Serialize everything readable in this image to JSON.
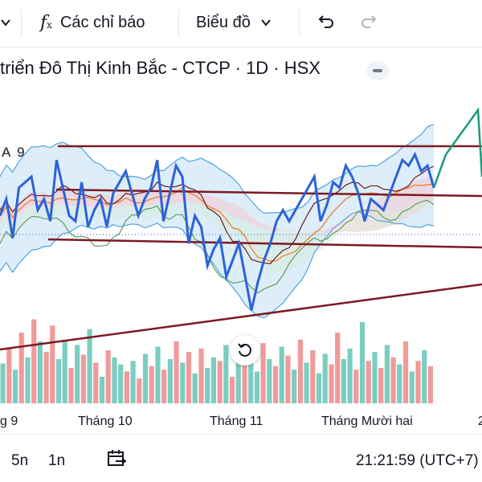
{
  "toolbar": {
    "indicators_label": "Các chỉ báo",
    "chart_type_label": "Biểu đồ",
    "icons": [
      "chevron-down-icon",
      "function-icon",
      "chevron-down-icon",
      "undo-icon",
      "redo-icon"
    ]
  },
  "symbol": {
    "title": "triển Đô Thị Kinh Bắc - CTCP · 1D · HSX"
  },
  "indicator": {
    "label": "A 9"
  },
  "chart_data": {
    "type": "line",
    "x_ticks": [
      "g 9",
      "Tháng 10",
      "Tháng 11",
      "Tháng Mười hai"
    ],
    "x_tick_partial_right": "2",
    "colors": {
      "price": "#2d62d8",
      "bands": "#4fa3e0",
      "band_fill": "#cfe6f7",
      "trendline": "#7b1a22",
      "cloud_pink": "#f4c9cf",
      "cloud_green": "#d6ecd6",
      "ma_orange": "#e8873a",
      "ma_green": "#5aa05a",
      "ma_brown": "#6b1a1a",
      "projection": "#1a9a7a",
      "vol_up": "#7ccdc1",
      "vol_down": "#f09a9a"
    },
    "price_series": [
      98,
      104,
      90,
      108,
      110,
      112,
      100,
      104,
      96,
      118,
      108,
      98,
      96,
      110,
      94,
      100,
      104,
      94,
      106,
      110,
      114,
      106,
      98,
      104,
      108,
      118,
      96,
      106,
      116,
      112,
      88,
      98,
      94,
      80,
      86,
      90,
      76,
      82,
      88,
      76,
      64,
      74,
      82,
      88,
      96,
      100,
      96,
      100,
      104,
      108,
      112,
      96,
      102,
      110,
      108,
      116,
      112,
      106,
      96,
      104,
      102,
      100,
      106,
      112,
      118,
      116,
      120,
      114,
      116,
      108
    ],
    "projection": [
      108,
      120,
      136,
      112
    ],
    "volume": [
      {
        "v": 45,
        "up": true
      },
      {
        "v": 62,
        "up": false
      },
      {
        "v": 38,
        "up": true
      },
      {
        "v": 80,
        "up": false
      },
      {
        "v": 52,
        "up": true
      },
      {
        "v": 95,
        "up": false
      },
      {
        "v": 70,
        "up": true
      },
      {
        "v": 58,
        "up": false
      },
      {
        "v": 88,
        "up": false
      },
      {
        "v": 50,
        "up": true
      },
      {
        "v": 72,
        "up": true
      },
      {
        "v": 40,
        "up": false
      },
      {
        "v": 66,
        "up": true
      },
      {
        "v": 55,
        "up": false
      },
      {
        "v": 84,
        "up": true
      },
      {
        "v": 46,
        "up": false
      },
      {
        "v": 30,
        "up": true
      },
      {
        "v": 60,
        "up": false
      },
      {
        "v": 52,
        "up": true
      },
      {
        "v": 44,
        "up": true
      },
      {
        "v": 36,
        "up": false
      },
      {
        "v": 48,
        "up": true
      },
      {
        "v": 28,
        "up": false
      },
      {
        "v": 56,
        "up": true
      },
      {
        "v": 42,
        "up": false
      },
      {
        "v": 64,
        "up": true
      },
      {
        "v": 38,
        "up": false
      },
      {
        "v": 50,
        "up": true
      },
      {
        "v": 70,
        "up": false
      },
      {
        "v": 46,
        "up": true
      },
      {
        "v": 58,
        "up": false
      },
      {
        "v": 34,
        "up": true
      },
      {
        "v": 62,
        "up": false
      },
      {
        "v": 40,
        "up": true
      },
      {
        "v": 52,
        "up": true
      },
      {
        "v": 48,
        "up": false
      },
      {
        "v": 66,
        "up": true
      },
      {
        "v": 30,
        "up": false
      },
      {
        "v": 74,
        "up": true
      },
      {
        "v": 44,
        "up": false
      },
      {
        "v": 58,
        "up": true
      },
      {
        "v": 36,
        "up": true
      },
      {
        "v": 68,
        "up": false
      },
      {
        "v": 50,
        "up": true
      },
      {
        "v": 42,
        "up": false
      },
      {
        "v": 64,
        "up": true
      },
      {
        "v": 54,
        "up": false
      },
      {
        "v": 38,
        "up": true
      },
      {
        "v": 72,
        "up": false
      },
      {
        "v": 46,
        "up": true
      },
      {
        "v": 60,
        "up": false
      },
      {
        "v": 34,
        "up": true
      },
      {
        "v": 56,
        "up": true
      },
      {
        "v": 44,
        "up": false
      },
      {
        "v": 80,
        "up": false
      },
      {
        "v": 50,
        "up": true
      },
      {
        "v": 62,
        "up": true
      },
      {
        "v": 38,
        "up": false
      },
      {
        "v": 92,
        "up": true
      },
      {
        "v": 48,
        "up": false
      },
      {
        "v": 58,
        "up": true
      },
      {
        "v": 40,
        "up": false
      },
      {
        "v": 66,
        "up": true
      },
      {
        "v": 52,
        "up": false
      },
      {
        "v": 44,
        "up": true
      },
      {
        "v": 70,
        "up": false
      },
      {
        "v": 36,
        "up": true
      },
      {
        "v": 48,
        "up": false
      },
      {
        "v": 60,
        "up": true
      },
      {
        "v": 42,
        "up": false
      }
    ]
  },
  "bottom_bar": {
    "range_5d": "5n",
    "range_1m": "1n",
    "clock": "21:21:59 (UTC+7)"
  }
}
